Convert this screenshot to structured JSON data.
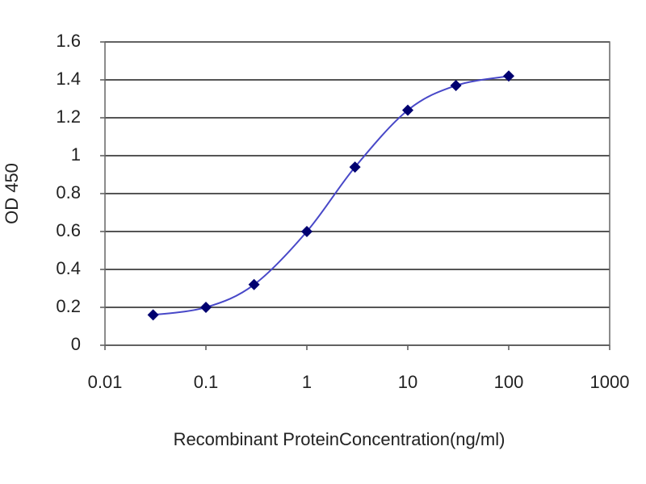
{
  "chart_data": {
    "type": "line",
    "x_label": "Recombinant ProteinConcentration(ng/ml)",
    "y_label": "OD 450",
    "x": [
      0.03,
      0.1,
      0.3,
      1,
      3,
      10,
      30,
      100
    ],
    "series": [
      {
        "name": "OD 450",
        "color": "#4848c8",
        "marker_color": "#000070",
        "values": [
          0.16,
          0.2,
          0.32,
          0.6,
          0.94,
          1.24,
          1.37,
          1.42
        ]
      }
    ],
    "x_log": true,
    "xlim": [
      0.01,
      1000
    ],
    "xticks": [
      0.01,
      0.1,
      1,
      10,
      100,
      1000
    ],
    "ylim": [
      0,
      1.6
    ],
    "yticks": [
      0,
      0.2,
      0.4,
      0.6,
      0.8,
      1,
      1.2,
      1.4,
      1.6
    ],
    "grid": true
  }
}
